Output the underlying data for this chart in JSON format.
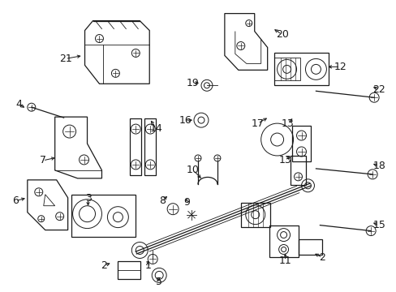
{
  "bg_color": "#ffffff",
  "line_color": "#1a1a1a",
  "figsize": [
    4.89,
    3.6
  ],
  "dpi": 100,
  "label_fontsize": 9,
  "lw_main": 0.9,
  "lw_thin": 0.6,
  "lw_thick": 1.2
}
